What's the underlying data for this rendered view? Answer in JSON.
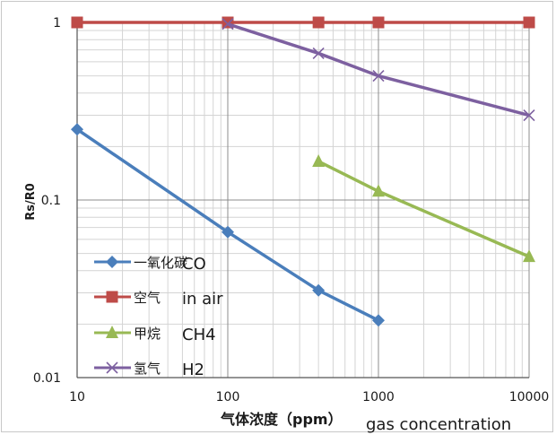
{
  "chart_data": {
    "type": "line",
    "xlabel": "气体浓度（ppm）",
    "xlabel_en": "gas concentration",
    "ylabel": "Rs/R0",
    "x_scale": "log",
    "y_scale": "log",
    "xlim": [
      10,
      10000
    ],
    "ylim": [
      0.01,
      1
    ],
    "x_ticks": [
      "10",
      "100",
      "1000",
      "10000"
    ],
    "y_ticks": [
      "0.01",
      "0.1",
      "1"
    ],
    "grid": "major and minor, both axes",
    "legend_position": "lower-left, inside plot",
    "series": [
      {
        "name": "一氧化碳",
        "name_en": "CO",
        "color": "#4a7ebb",
        "marker": "diamond",
        "x": [
          10,
          100,
          400,
          1000
        ],
        "y": [
          0.25,
          0.066,
          0.031,
          0.021
        ]
      },
      {
        "name": "空气",
        "name_en": "in air",
        "color": "#be4b48",
        "marker": "square",
        "x": [
          10,
          100,
          400,
          1000,
          10000
        ],
        "y": [
          1,
          1,
          1,
          1,
          1
        ]
      },
      {
        "name": "甲烷",
        "name_en": "CH4",
        "color": "#98b954",
        "marker": "triangle",
        "x": [
          400,
          1000,
          10000
        ],
        "y": [
          0.165,
          0.112,
          0.048
        ]
      },
      {
        "name": "氢气",
        "name_en": "H2",
        "color": "#7d60a0",
        "marker": "x",
        "x": [
          100,
          400,
          1000,
          10000
        ],
        "y": [
          0.98,
          0.67,
          0.5,
          0.3
        ]
      }
    ]
  }
}
